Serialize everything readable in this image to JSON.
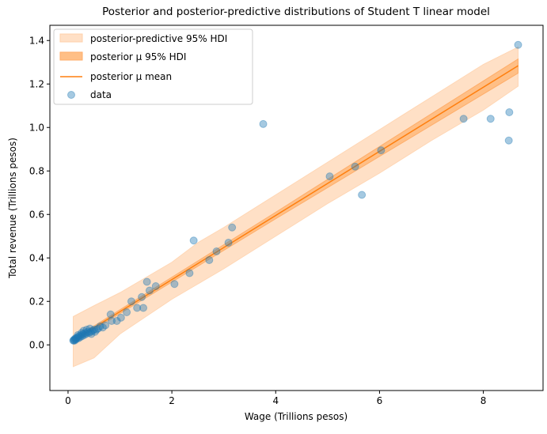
{
  "chart_data": {
    "type": "scatter",
    "title": "Posterior and posterior-predictive distributions of Student T linear model",
    "xlabel": "Wage (Trillions pesos)",
    "ylabel": "Total revenue (Trillions pesos)",
    "xlim": [
      -0.35,
      9.15
    ],
    "ylim": [
      -0.21,
      1.47
    ],
    "xticks": [
      0,
      2,
      4,
      6,
      8
    ],
    "yticks": [
      0.0,
      0.2,
      0.4,
      0.6,
      0.8,
      1.0,
      1.2,
      1.4
    ],
    "xtick_labels": [
      "0",
      "2",
      "4",
      "6",
      "8"
    ],
    "ytick_labels": [
      "0.0",
      "0.2",
      "0.4",
      "0.6",
      "0.8",
      "1.0",
      "1.2",
      "1.4"
    ],
    "grid": false,
    "legend_position": "top-left",
    "legend": [
      {
        "label": "posterior-predictive 95% HDI",
        "kind": "band",
        "color": "#ffe0c6"
      },
      {
        "label": "posterior μ 95% HDI",
        "kind": "band",
        "color": "#ffbf86"
      },
      {
        "label": "posterior μ mean",
        "kind": "line",
        "color": "#ff7f0e"
      },
      {
        "label": "data",
        "kind": "point",
        "color": "#1f77b4"
      }
    ],
    "predictive_hdi": {
      "x": [
        0.1,
        0.5,
        1.0,
        1.5,
        2.0,
        2.5,
        3.0,
        4.0,
        5.0,
        6.0,
        7.0,
        8.0,
        8.67
      ],
      "lower": [
        -0.1,
        -0.06,
        0.05,
        0.13,
        0.21,
        0.28,
        0.35,
        0.5,
        0.65,
        0.79,
        0.94,
        1.08,
        1.19
      ],
      "upper": [
        0.13,
        0.18,
        0.24,
        0.31,
        0.38,
        0.47,
        0.54,
        0.69,
        0.84,
        0.99,
        1.14,
        1.29,
        1.37
      ]
    },
    "mu_mean": {
      "x": [
        0.1,
        8.67
      ],
      "y": [
        0.02,
        1.284
      ]
    },
    "mu_hdi": {
      "x": [
        0.1,
        4.0,
        8.67
      ],
      "lower": [
        0.013,
        0.58,
        1.25
      ],
      "upper": [
        0.027,
        0.61,
        1.315
      ]
    },
    "data": {
      "x": [
        3.76,
        5.04,
        5.53,
        5.66,
        6.03,
        7.62,
        8.14,
        8.5,
        8.49,
        8.67,
        2.42,
        3.16,
        3.09,
        2.86,
        2.72,
        2.34,
        2.05,
        1.52,
        1.57,
        1.69,
        1.42,
        1.22,
        1.33,
        1.45,
        1.13,
        1.02,
        0.82,
        0.84,
        0.94,
        0.72,
        0.67,
        0.62,
        0.58,
        0.55,
        0.5,
        0.47,
        0.44,
        0.42,
        0.4,
        0.38,
        0.35,
        0.33,
        0.31,
        0.29,
        0.27,
        0.25,
        0.23,
        0.21,
        0.2,
        0.18,
        0.16,
        0.15,
        0.14,
        0.13,
        0.12,
        0.11,
        0.1,
        0.3,
        0.36,
        0.45,
        0.52,
        0.26,
        0.19
      ],
      "y": [
        1.016,
        0.775,
        0.82,
        0.69,
        0.895,
        1.04,
        1.04,
        1.07,
        0.94,
        1.38,
        0.48,
        0.54,
        0.47,
        0.43,
        0.39,
        0.33,
        0.28,
        0.29,
        0.25,
        0.27,
        0.22,
        0.2,
        0.17,
        0.17,
        0.15,
        0.125,
        0.14,
        0.11,
        0.11,
        0.09,
        0.08,
        0.085,
        0.075,
        0.07,
        0.07,
        0.065,
        0.06,
        0.075,
        0.055,
        0.06,
        0.05,
        0.055,
        0.045,
        0.05,
        0.04,
        0.045,
        0.035,
        0.04,
        0.03,
        0.035,
        0.03,
        0.025,
        0.03,
        0.02,
        0.025,
        0.02,
        0.02,
        0.065,
        0.07,
        0.05,
        0.06,
        0.055,
        0.045
      ]
    }
  }
}
